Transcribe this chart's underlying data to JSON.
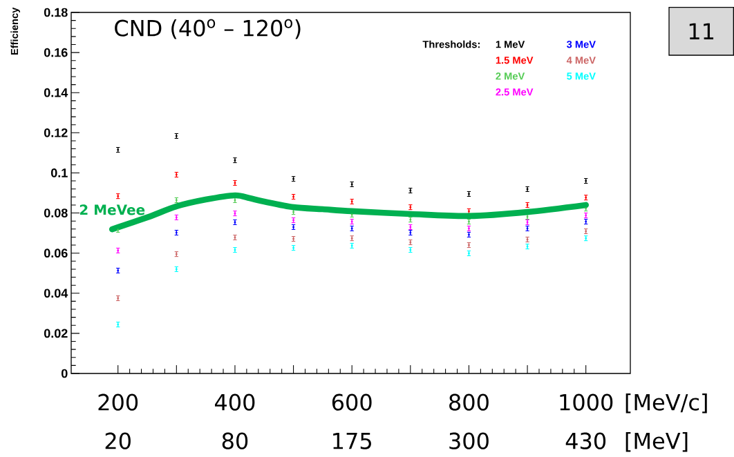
{
  "chart_data": {
    "type": "scatter",
    "title": "CND (40$^{o}$ – 120$^{o}$)",
    "ylabel": "Efficiency",
    "xlabel": "[MeV/c]",
    "x2label": "[MeV]",
    "legend_title": "Thresholds:",
    "x": [
      200,
      300,
      400,
      500,
      600,
      700,
      800,
      900,
      1000
    ],
    "xlim": [
      120,
      1076
    ],
    "ylim": [
      0,
      0.18
    ],
    "xticks": [
      200,
      {
        "value": 300,
        "label": null
      },
      400,
      {
        "value": 500,
        "label": null
      },
      600,
      {
        "value": 700,
        "label": null
      },
      800,
      {
        "value": 900,
        "label": null
      },
      1000
    ],
    "yticks": [
      0,
      0.02,
      0.04,
      0.06,
      0.08,
      0.1,
      0.12,
      0.14,
      0.16,
      0.18
    ],
    "series": [
      {
        "name": "1 MeV",
        "color": "#000000",
        "values": [
          0.1115,
          0.1184,
          0.1063,
          0.097,
          0.0943,
          0.0912,
          0.0895,
          0.0919,
          0.096
        ],
        "errors": [
          0.0012,
          0.0012,
          0.0012,
          0.0012,
          0.0012,
          0.0012,
          0.0012,
          0.0012,
          0.0012
        ]
      },
      {
        "name": "1.5 MeV",
        "color": "#ff0000",
        "values": [
          0.0884,
          0.0991,
          0.095,
          0.0881,
          0.0857,
          0.0829,
          0.0809,
          0.084,
          0.0877
        ],
        "errors": [
          0.0012,
          0.0012,
          0.0012,
          0.0012,
          0.0012,
          0.0012,
          0.0012,
          0.0012,
          0.0012
        ]
      },
      {
        "name": "2 MeV",
        "color": "#55cc55",
        "values": [
          0.0716,
          0.0864,
          0.0864,
          0.0805,
          0.0792,
          0.0767,
          0.0757,
          0.0781,
          0.0822
        ],
        "errors": [
          0.0012,
          0.0012,
          0.0012,
          0.0012,
          0.0012,
          0.0012,
          0.0012,
          0.0012,
          0.0012
        ]
      },
      {
        "name": "2.5 MeV",
        "color": "#ff00ff",
        "values": [
          0.0613,
          0.0778,
          0.0798,
          0.0764,
          0.0757,
          0.073,
          0.0723,
          0.0754,
          0.0788
        ],
        "errors": [
          0.0012,
          0.0012,
          0.0012,
          0.0012,
          0.0012,
          0.0012,
          0.0012,
          0.0012,
          0.0012
        ]
      },
      {
        "name": "3 MeV",
        "color": "#0000ff",
        "values": [
          0.0513,
          0.0702,
          0.0754,
          0.073,
          0.0723,
          0.0702,
          0.0692,
          0.0723,
          0.0757
        ],
        "errors": [
          0.0012,
          0.0012,
          0.0012,
          0.0012,
          0.0012,
          0.0012,
          0.0012,
          0.0012,
          0.0012
        ]
      },
      {
        "name": "4 MeV",
        "color": "#cc6666",
        "values": [
          0.0375,
          0.0595,
          0.0678,
          0.0671,
          0.0674,
          0.0654,
          0.064,
          0.0668,
          0.0709
        ],
        "errors": [
          0.0012,
          0.0012,
          0.0012,
          0.0012,
          0.0012,
          0.0012,
          0.0012,
          0.0012,
          0.0012
        ]
      },
      {
        "name": "5 MeV",
        "color": "#00ffff",
        "values": [
          0.0244,
          0.052,
          0.0616,
          0.0626,
          0.0637,
          0.0616,
          0.0599,
          0.0633,
          0.0674
        ],
        "errors": [
          0.0012,
          0.0012,
          0.0012,
          0.0012,
          0.0012,
          0.0012,
          0.0012,
          0.0012,
          0.0012
        ]
      },
      {
        "type": "line",
        "color": "#00b050",
        "x": [
          190,
          250,
          300,
          350,
          400,
          425,
          450,
          500,
          550,
          600,
          700,
          800,
          900,
          1000
        ],
        "values": [
          0.0719,
          0.0778,
          0.0833,
          0.0867,
          0.0888,
          0.0874,
          0.0857,
          0.0829,
          0.0819,
          0.0809,
          0.0795,
          0.0785,
          0.0805,
          0.084
        ]
      }
    ],
    "annotations": [
      {
        "text": "2 MeVee",
        "x": 190,
        "y": 0.0719
      },
      "20",
      "80",
      "175",
      "300",
      "430",
      "11"
    ]
  }
}
